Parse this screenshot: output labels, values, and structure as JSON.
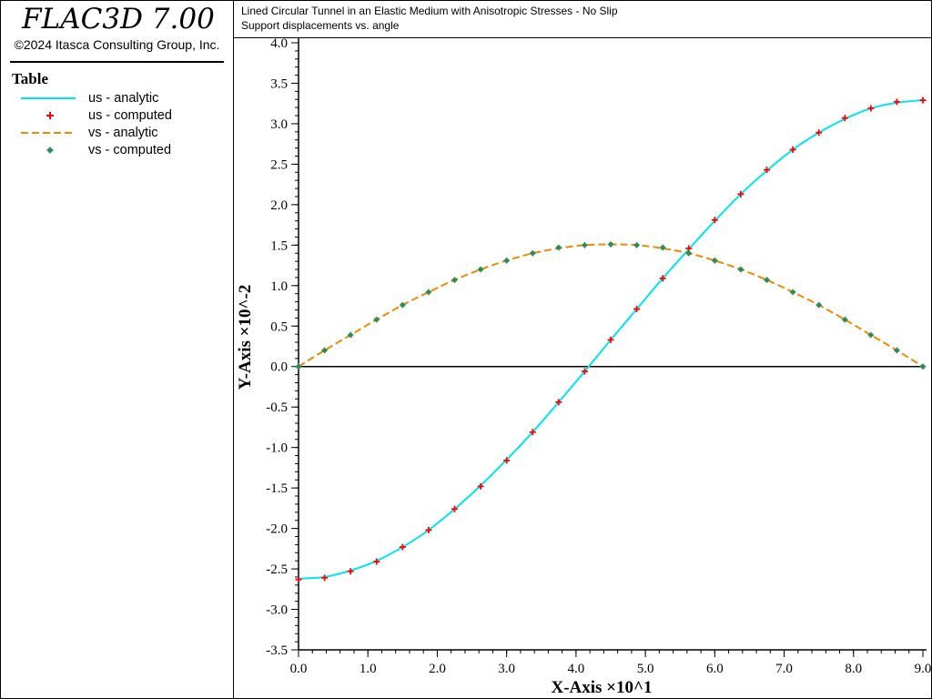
{
  "app": {
    "name": "FLAC3D 7.00",
    "copyright": "©2024 Itasca Consulting Group, Inc."
  },
  "legend": {
    "title": "Table"
  },
  "header": {
    "title": "Lined Circular Tunnel in an Elastic Medium with Anisotropic Stresses - No Slip",
    "subtitle": "Support displacements vs. angle"
  },
  "colors": {
    "us_line": "#00e5ee",
    "us_marker": "#ff0000",
    "vs_line": "#ee8a00",
    "vs_marker": "#2e8b57",
    "axis": "#000000"
  },
  "chart_data": {
    "type": "line",
    "xlabel": "X-Axis ×10^1",
    "ylabel": "Y-Axis ×10^-2",
    "xlim": [
      0,
      9.0
    ],
    "ylim": [
      -3.5,
      4.0
    ],
    "x_ticks": [
      "0.0",
      "1.0",
      "2.0",
      "3.0",
      "4.0",
      "5.0",
      "6.0",
      "7.0",
      "8.0",
      "9.0"
    ],
    "y_ticks": [
      "4.0",
      "3.5",
      "3.0",
      "2.5",
      "2.0",
      "1.5",
      "1.0",
      "0.5",
      "0.0",
      "-0.5",
      "-1.0",
      "-1.5",
      "-2.0",
      "-2.5",
      "-3.0",
      "-3.5"
    ],
    "grid": false,
    "legend_placement": "left-panel",
    "series": [
      {
        "name": "us - analytic",
        "style": "solid-line",
        "x": [
          0.0,
          0.375,
          0.75,
          1.125,
          1.5,
          1.875,
          2.25,
          2.625,
          3.0,
          3.375,
          3.75,
          4.125,
          4.5,
          4.875,
          5.25,
          5.625,
          6.0,
          6.375,
          6.75,
          7.125,
          7.5,
          7.875,
          8.25,
          8.625,
          9.0
        ],
        "y": [
          -2.62,
          -2.6,
          -2.52,
          -2.4,
          -2.23,
          -2.02,
          -1.76,
          -1.47,
          -1.15,
          -0.81,
          -0.44,
          -0.06,
          0.33,
          0.71,
          1.09,
          1.45,
          1.8,
          2.13,
          2.42,
          2.68,
          2.89,
          3.06,
          3.19,
          3.26,
          3.29
        ]
      },
      {
        "name": "us - computed",
        "style": "cross-markers",
        "x": [
          0.0,
          0.375,
          0.75,
          1.125,
          1.5,
          1.875,
          2.25,
          2.625,
          3.0,
          3.375,
          3.75,
          4.125,
          4.5,
          4.875,
          5.25,
          5.625,
          6.0,
          6.375,
          6.75,
          7.125,
          7.5,
          7.875,
          8.25,
          8.625,
          9.0
        ],
        "y": [
          -2.63,
          -2.61,
          -2.53,
          -2.41,
          -2.23,
          -2.02,
          -1.76,
          -1.48,
          -1.16,
          -0.81,
          -0.44,
          -0.06,
          0.33,
          0.71,
          1.09,
          1.46,
          1.81,
          2.13,
          2.43,
          2.68,
          2.89,
          3.07,
          3.19,
          3.27,
          3.29
        ]
      },
      {
        "name": "vs - analytic",
        "style": "dashed-line",
        "x": [
          0.0,
          0.375,
          0.75,
          1.125,
          1.5,
          1.875,
          2.25,
          2.625,
          3.0,
          3.375,
          3.75,
          4.125,
          4.5,
          4.875,
          5.25,
          5.625,
          6.0,
          6.375,
          6.75,
          7.125,
          7.5,
          7.875,
          8.25,
          8.625,
          9.0
        ],
        "y": [
          0.0,
          0.2,
          0.39,
          0.58,
          0.76,
          0.92,
          1.07,
          1.2,
          1.31,
          1.4,
          1.46,
          1.5,
          1.51,
          1.5,
          1.46,
          1.4,
          1.31,
          1.2,
          1.07,
          0.92,
          0.76,
          0.58,
          0.39,
          0.2,
          0.0
        ]
      },
      {
        "name": "vs - computed",
        "style": "star-markers",
        "x": [
          0.0,
          0.375,
          0.75,
          1.125,
          1.5,
          1.875,
          2.25,
          2.625,
          3.0,
          3.375,
          3.75,
          4.125,
          4.5,
          4.875,
          5.25,
          5.625,
          6.0,
          6.375,
          6.75,
          7.125,
          7.5,
          7.875,
          8.25,
          8.625,
          9.0
        ],
        "y": [
          0.0,
          0.2,
          0.39,
          0.58,
          0.76,
          0.92,
          1.07,
          1.2,
          1.31,
          1.4,
          1.47,
          1.5,
          1.51,
          1.5,
          1.47,
          1.4,
          1.31,
          1.2,
          1.07,
          0.92,
          0.76,
          0.58,
          0.39,
          0.2,
          0.0
        ]
      }
    ]
  }
}
